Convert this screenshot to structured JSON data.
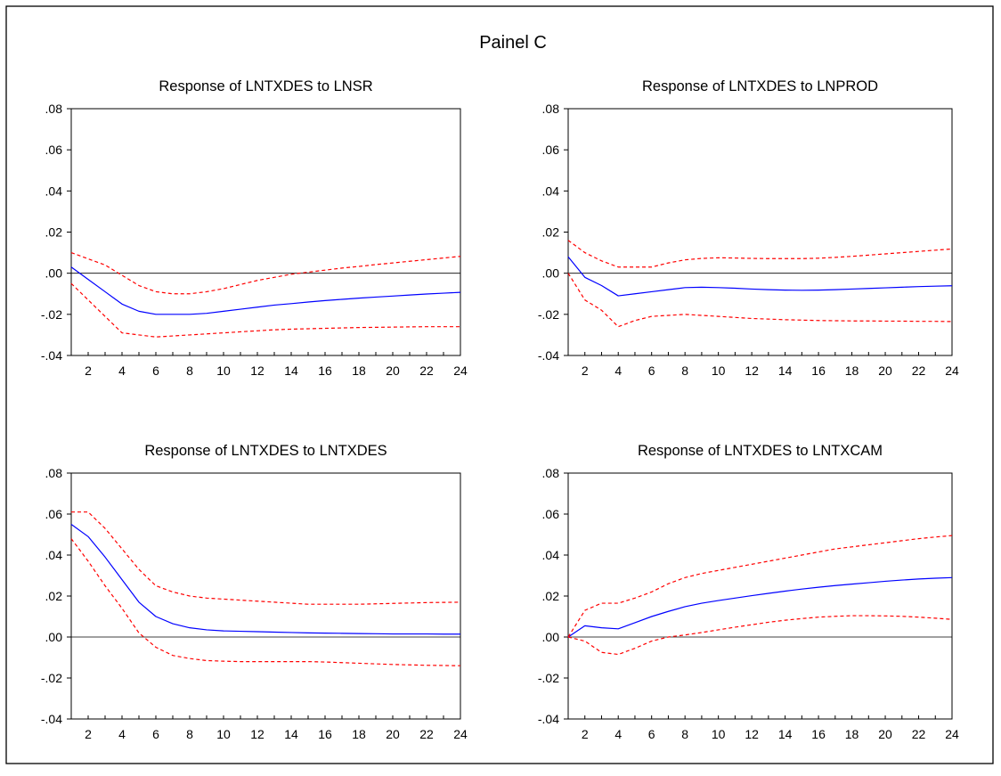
{
  "figure": {
    "title": "Painel C"
  },
  "style": {
    "response_color": "#0000ff",
    "band_color": "#ff0000",
    "axis_color": "#000000"
  },
  "chart_data": [
    {
      "type": "line",
      "title": "Response of LNTXDES to LNSR",
      "x": [
        1,
        2,
        3,
        4,
        5,
        6,
        7,
        8,
        9,
        10,
        11,
        12,
        13,
        14,
        15,
        16,
        17,
        18,
        19,
        20,
        21,
        22,
        23,
        24
      ],
      "ylim": [
        -0.04,
        0.08
      ],
      "yticks": [
        ".08",
        ".06",
        ".04",
        ".02",
        ".00",
        "-.02",
        "-.04"
      ],
      "yticks_values": [
        0.08,
        0.06,
        0.04,
        0.02,
        0.0,
        -0.02,
        -0.04
      ],
      "xticks": [
        "2",
        "4",
        "6",
        "8",
        "10",
        "12",
        "14",
        "16",
        "18",
        "20",
        "22",
        "24"
      ],
      "xticks_values": [
        2,
        4,
        6,
        8,
        10,
        12,
        14,
        16,
        18,
        20,
        22,
        24
      ],
      "series": [
        {
          "role": "response",
          "values": [
            0.003,
            -0.003,
            -0.009,
            -0.015,
            -0.0185,
            -0.02,
            -0.02,
            -0.02,
            -0.0195,
            -0.0185,
            -0.0175,
            -0.0165,
            -0.0155,
            -0.0148,
            -0.014,
            -0.0133,
            -0.0127,
            -0.0121,
            -0.0116,
            -0.0111,
            -0.0106,
            -0.0101,
            -0.0097,
            -0.0093
          ]
        },
        {
          "role": "upper",
          "values": [
            0.01,
            0.007,
            0.004,
            -0.001,
            -0.006,
            -0.009,
            -0.01,
            -0.01,
            -0.009,
            -0.0075,
            -0.0055,
            -0.0035,
            -0.002,
            -0.0005,
            0.0005,
            0.0015,
            0.0025,
            0.0033,
            0.0042,
            0.005,
            0.0058,
            0.0066,
            0.0074,
            0.0082
          ]
        },
        {
          "role": "lower",
          "values": [
            -0.005,
            -0.013,
            -0.021,
            -0.029,
            -0.03,
            -0.031,
            -0.0305,
            -0.03,
            -0.0295,
            -0.029,
            -0.0285,
            -0.028,
            -0.0275,
            -0.0272,
            -0.027,
            -0.0268,
            -0.0266,
            -0.0264,
            -0.0263,
            -0.0262,
            -0.0261,
            -0.026,
            -0.026,
            -0.026
          ]
        }
      ]
    },
    {
      "type": "line",
      "title": "Response of LNTXDES to LNPROD",
      "x": [
        1,
        2,
        3,
        4,
        5,
        6,
        7,
        8,
        9,
        10,
        11,
        12,
        13,
        14,
        15,
        16,
        17,
        18,
        19,
        20,
        21,
        22,
        23,
        24
      ],
      "ylim": [
        -0.04,
        0.08
      ],
      "yticks": [
        ".08",
        ".06",
        ".04",
        ".02",
        ".00",
        "-.02",
        "-.04"
      ],
      "yticks_values": [
        0.08,
        0.06,
        0.04,
        0.02,
        0.0,
        -0.02,
        -0.04
      ],
      "xticks": [
        "2",
        "4",
        "6",
        "8",
        "10",
        "12",
        "14",
        "16",
        "18",
        "20",
        "22",
        "24"
      ],
      "xticks_values": [
        2,
        4,
        6,
        8,
        10,
        12,
        14,
        16,
        18,
        20,
        22,
        24
      ],
      "series": [
        {
          "role": "response",
          "values": [
            0.008,
            -0.002,
            -0.006,
            -0.011,
            -0.01,
            -0.009,
            -0.008,
            -0.007,
            -0.0068,
            -0.007,
            -0.0073,
            -0.0077,
            -0.008,
            -0.0082,
            -0.0083,
            -0.0082,
            -0.008,
            -0.0077,
            -0.0074,
            -0.0071,
            -0.0068,
            -0.0065,
            -0.0063,
            -0.0061
          ]
        },
        {
          "role": "upper",
          "values": [
            0.016,
            0.01,
            0.006,
            0.003,
            0.003,
            0.003,
            0.005,
            0.0065,
            0.0072,
            0.0075,
            0.0074,
            0.0072,
            0.0071,
            0.0071,
            0.0071,
            0.0073,
            0.0077,
            0.0082,
            0.0088,
            0.0094,
            0.01,
            0.0106,
            0.0112,
            0.0118
          ]
        },
        {
          "role": "lower",
          "values": [
            0.0,
            -0.013,
            -0.018,
            -0.026,
            -0.023,
            -0.021,
            -0.0205,
            -0.02,
            -0.0205,
            -0.021,
            -0.0215,
            -0.022,
            -0.0223,
            -0.0226,
            -0.0228,
            -0.023,
            -0.0231,
            -0.0232,
            -0.0232,
            -0.0233,
            -0.0233,
            -0.0234,
            -0.0234,
            -0.0235
          ]
        }
      ]
    },
    {
      "type": "line",
      "title": "Response of LNTXDES to LNTXDES",
      "x": [
        1,
        2,
        3,
        4,
        5,
        6,
        7,
        8,
        9,
        10,
        11,
        12,
        13,
        14,
        15,
        16,
        17,
        18,
        19,
        20,
        21,
        22,
        23,
        24
      ],
      "ylim": [
        -0.04,
        0.08
      ],
      "yticks": [
        ".08",
        ".06",
        ".04",
        ".02",
        ".00",
        "-.02",
        "-.04"
      ],
      "yticks_values": [
        0.08,
        0.06,
        0.04,
        0.02,
        0.0,
        -0.02,
        -0.04
      ],
      "xticks": [
        "2",
        "4",
        "6",
        "8",
        "10",
        "12",
        "14",
        "16",
        "18",
        "20",
        "22",
        "24"
      ],
      "xticks_values": [
        2,
        4,
        6,
        8,
        10,
        12,
        14,
        16,
        18,
        20,
        22,
        24
      ],
      "series": [
        {
          "role": "response",
          "values": [
            0.055,
            0.049,
            0.039,
            0.028,
            0.017,
            0.01,
            0.0065,
            0.0045,
            0.0035,
            0.003,
            0.0028,
            0.0026,
            0.0024,
            0.0022,
            0.002,
            0.0019,
            0.0018,
            0.0017,
            0.0016,
            0.0015,
            0.0015,
            0.0015,
            0.0014,
            0.0014
          ]
        },
        {
          "role": "upper",
          "values": [
            0.061,
            0.061,
            0.053,
            0.043,
            0.033,
            0.025,
            0.022,
            0.02,
            0.019,
            0.0185,
            0.018,
            0.0175,
            0.017,
            0.0165,
            0.016,
            0.016,
            0.016,
            0.016,
            0.0162,
            0.0164,
            0.0166,
            0.0168,
            0.0169,
            0.017
          ]
        },
        {
          "role": "lower",
          "values": [
            0.048,
            0.037,
            0.025,
            0.014,
            0.002,
            -0.005,
            -0.009,
            -0.0105,
            -0.0115,
            -0.0118,
            -0.012,
            -0.012,
            -0.012,
            -0.012,
            -0.012,
            -0.0122,
            -0.0125,
            -0.0128,
            -0.0131,
            -0.0134,
            -0.0136,
            -0.0138,
            -0.0139,
            -0.014
          ]
        }
      ]
    },
    {
      "type": "line",
      "title": "Response of LNTXDES to LNTXCAM",
      "x": [
        1,
        2,
        3,
        4,
        5,
        6,
        7,
        8,
        9,
        10,
        11,
        12,
        13,
        14,
        15,
        16,
        17,
        18,
        19,
        20,
        21,
        22,
        23,
        24
      ],
      "ylim": [
        -0.04,
        0.08
      ],
      "yticks": [
        ".08",
        ".06",
        ".04",
        ".02",
        ".00",
        "-.02",
        "-.04"
      ],
      "yticks_values": [
        0.08,
        0.06,
        0.04,
        0.02,
        0.0,
        -0.02,
        -0.04
      ],
      "xticks": [
        "2",
        "4",
        "6",
        "8",
        "10",
        "12",
        "14",
        "16",
        "18",
        "20",
        "22",
        "24"
      ],
      "xticks_values": [
        2,
        4,
        6,
        8,
        10,
        12,
        14,
        16,
        18,
        20,
        22,
        24
      ],
      "series": [
        {
          "role": "response",
          "values": [
            0.0,
            0.0055,
            0.0045,
            0.004,
            0.007,
            0.01,
            0.0125,
            0.0148,
            0.0165,
            0.0178,
            0.019,
            0.0202,
            0.0213,
            0.0224,
            0.0234,
            0.0243,
            0.0251,
            0.0258,
            0.0265,
            0.0272,
            0.0278,
            0.0283,
            0.0287,
            0.029
          ]
        },
        {
          "role": "upper",
          "values": [
            0.0,
            0.013,
            0.0165,
            0.0165,
            0.019,
            0.022,
            0.026,
            0.029,
            0.031,
            0.0325,
            0.034,
            0.0355,
            0.037,
            0.0385,
            0.04,
            0.0415,
            0.043,
            0.044,
            0.045,
            0.046,
            0.047,
            0.048,
            0.0488,
            0.0495
          ]
        },
        {
          "role": "lower",
          "values": [
            0.0,
            -0.002,
            -0.0075,
            -0.0085,
            -0.0055,
            -0.002,
            0.0,
            0.001,
            0.0022,
            0.0035,
            0.0048,
            0.006,
            0.0072,
            0.0082,
            0.009,
            0.0097,
            0.0101,
            0.0104,
            0.0104,
            0.0103,
            0.0101,
            0.0097,
            0.0092,
            0.0086
          ]
        }
      ]
    }
  ]
}
